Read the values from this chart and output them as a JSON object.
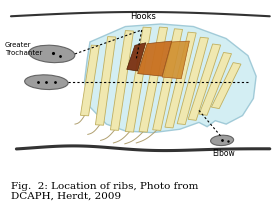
{
  "title": "Fig.  2: Location of ribs, Photo from\nDCAPH, Herdt, 2009",
  "title_fontsize": 7.5,
  "bg_color": "#ffffff",
  "fig_width": 2.78,
  "fig_height": 2.14,
  "dpi": 100,
  "diagram": {
    "rib_cage_fill": "#c8eaf0",
    "rib_cage_edge": "#90c0d0",
    "rib_color": "#f0e8b0",
    "rib_edge_color": "#c0b060",
    "biopsy_dark": "#7B3010",
    "biopsy_mid": "#C87020",
    "biopsy_light": "#D09030",
    "hook_label": "Hooks",
    "trochanter_label": "Greater\nTrochanter",
    "elbow_label": "Elbow",
    "dot_color": "#000000",
    "line_color": "#333333",
    "ellipse_color": "#909090"
  }
}
